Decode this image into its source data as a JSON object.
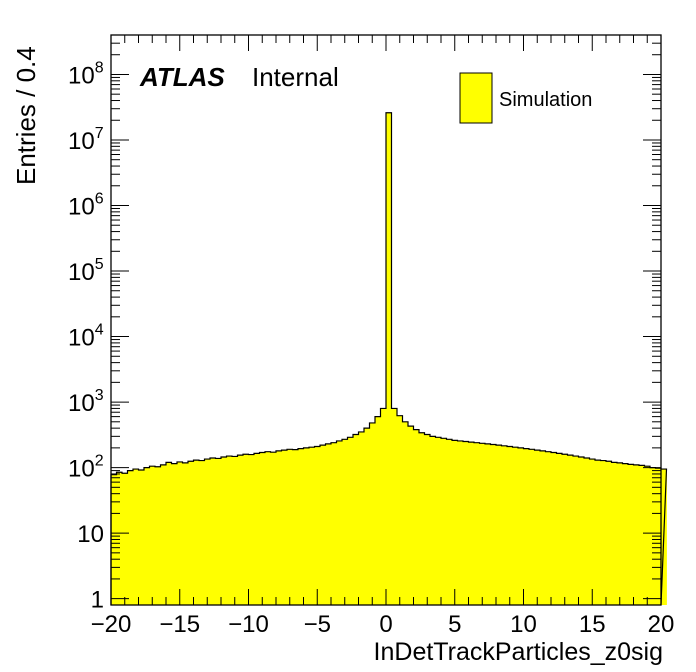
{
  "chart_data": {
    "type": "bar",
    "title": "",
    "xlabel": "InDetTrackParticles_z0sig",
    "ylabel": "Entries / 0.4",
    "xlim": [
      -20,
      20
    ],
    "ylim": [
      0.8,
      400000000
    ],
    "yscale": "log",
    "bin_width": 0.4,
    "x_ticks": [
      "−20",
      "−15",
      "−10",
      "−5",
      "0",
      "5",
      "10",
      "15",
      "20"
    ],
    "y_ticks": [
      {
        "value": 1,
        "base": "1",
        "exp": ""
      },
      {
        "value": 10,
        "base": "10",
        "exp": ""
      },
      {
        "value": 100,
        "base": "10",
        "exp": "2"
      },
      {
        "value": 1000,
        "base": "10",
        "exp": "3"
      },
      {
        "value": 10000,
        "base": "10",
        "exp": "4"
      },
      {
        "value": 100000,
        "base": "10",
        "exp": "5"
      },
      {
        "value": 1000000,
        "base": "10",
        "exp": "6"
      },
      {
        "value": 10000000,
        "base": "10",
        "exp": "7"
      },
      {
        "value": 100000000,
        "base": "10",
        "exp": "8"
      }
    ],
    "labels": {
      "atlas": "ATLAS",
      "internal": "Internal"
    },
    "legend": {
      "placement": "top-right",
      "entries": [
        {
          "label": "Simulation",
          "color": "#ffff00"
        }
      ]
    },
    "series": [
      {
        "name": "Simulation",
        "color": "#ffff00",
        "values": [
          78,
          85,
          82,
          90,
          95,
          92,
          100,
          105,
          103,
          110,
          120,
          115,
          122,
          118,
          125,
          130,
          128,
          135,
          140,
          138,
          145,
          150,
          148,
          155,
          160,
          158,
          165,
          170,
          175,
          172,
          180,
          185,
          190,
          188,
          195,
          200,
          205,
          210,
          220,
          230,
          240,
          255,
          270,
          290,
          320,
          350,
          400,
          480,
          600,
          800,
          26000000,
          800,
          620,
          500,
          430,
          380,
          340,
          320,
          300,
          290,
          280,
          270,
          260,
          255,
          250,
          245,
          240,
          235,
          230,
          225,
          220,
          215,
          210,
          205,
          200,
          195,
          190,
          185,
          180,
          175,
          170,
          165,
          160,
          155,
          150,
          145,
          140,
          135,
          130,
          128,
          125,
          120,
          118,
          115,
          112,
          110,
          108,
          105,
          100,
          98,
          95
        ]
      }
    ]
  }
}
